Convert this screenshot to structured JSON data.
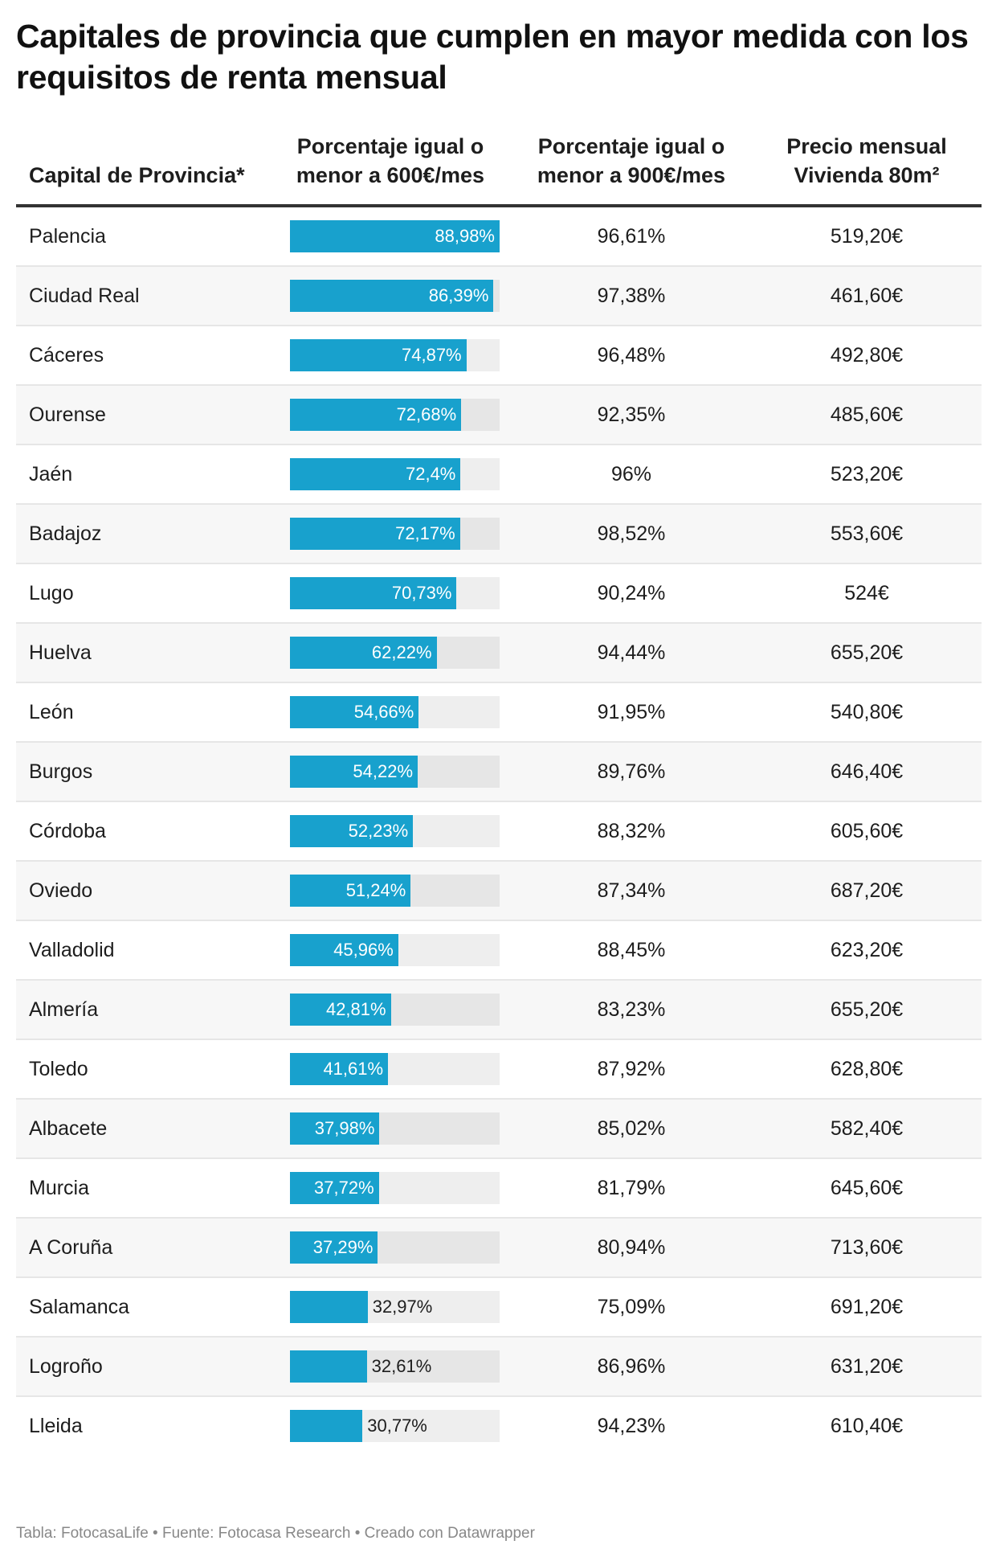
{
  "title": "Capitales de provincia que cumplen en mayor medida con los requisitos de renta mensual",
  "headers": [
    "Capital de Provincia*",
    "Porcentaje igual o menor a 600€/mes",
    "Porcentaje igual o menor a 900€/mes",
    "Precio mensual Vivienda 80m²"
  ],
  "colors": {
    "bar": "#18a1cd"
  },
  "rows": [
    {
      "capital": "Palencia",
      "p600": 88.98,
      "p600_label": "88,98%",
      "p900": "96,61%",
      "precio": "519,20€"
    },
    {
      "capital": "Ciudad Real",
      "p600": 86.39,
      "p600_label": "86,39%",
      "p900": "97,38%",
      "precio": "461,60€"
    },
    {
      "capital": "Cáceres",
      "p600": 74.87,
      "p600_label": "74,87%",
      "p900": "96,48%",
      "precio": "492,80€"
    },
    {
      "capital": "Ourense",
      "p600": 72.68,
      "p600_label": "72,68%",
      "p900": "92,35%",
      "precio": "485,60€"
    },
    {
      "capital": "Jaén",
      "p600": 72.4,
      "p600_label": "72,4%",
      "p900": "96%",
      "precio": "523,20€"
    },
    {
      "capital": "Badajoz",
      "p600": 72.17,
      "p600_label": "72,17%",
      "p900": "98,52%",
      "precio": "553,60€"
    },
    {
      "capital": "Lugo",
      "p600": 70.73,
      "p600_label": "70,73%",
      "p900": "90,24%",
      "precio": "524€"
    },
    {
      "capital": "Huelva",
      "p600": 62.22,
      "p600_label": "62,22%",
      "p900": "94,44%",
      "precio": "655,20€"
    },
    {
      "capital": "León",
      "p600": 54.66,
      "p600_label": "54,66%",
      "p900": "91,95%",
      "precio": "540,80€"
    },
    {
      "capital": "Burgos",
      "p600": 54.22,
      "p600_label": "54,22%",
      "p900": "89,76%",
      "precio": "646,40€"
    },
    {
      "capital": "Córdoba",
      "p600": 52.23,
      "p600_label": "52,23%",
      "p900": "88,32%",
      "precio": "605,60€"
    },
    {
      "capital": "Oviedo",
      "p600": 51.24,
      "p600_label": "51,24%",
      "p900": "87,34%",
      "precio": "687,20€"
    },
    {
      "capital": "Valladolid",
      "p600": 45.96,
      "p600_label": "45,96%",
      "p900": "88,45%",
      "precio": "623,20€"
    },
    {
      "capital": "Almería",
      "p600": 42.81,
      "p600_label": "42,81%",
      "p900": "83,23%",
      "precio": "655,20€"
    },
    {
      "capital": "Toledo",
      "p600": 41.61,
      "p600_label": "41,61%",
      "p900": "87,92%",
      "precio": "628,80€"
    },
    {
      "capital": "Albacete",
      "p600": 37.98,
      "p600_label": "37,98%",
      "p900": "85,02%",
      "precio": "582,40€"
    },
    {
      "capital": "Murcia",
      "p600": 37.72,
      "p600_label": "37,72%",
      "p900": "81,79%",
      "precio": "645,60€"
    },
    {
      "capital": "A Coruña",
      "p600": 37.29,
      "p600_label": "37,29%",
      "p900": "80,94%",
      "precio": "713,60€"
    },
    {
      "capital": "Salamanca",
      "p600": 32.97,
      "p600_label": "32,97%",
      "p900": "75,09%",
      "precio": "691,20€"
    },
    {
      "capital": "Logroño",
      "p600": 32.61,
      "p600_label": "32,61%",
      "p900": "86,96%",
      "precio": "631,20€"
    },
    {
      "capital": "Lleida",
      "p600": 30.77,
      "p600_label": "30,77%",
      "p900": "94,23%",
      "precio": "610,40€"
    }
  ],
  "footer": "Tabla: FotocasaLife • Fuente: Fotocasa Research • Creado con Datawrapper"
}
